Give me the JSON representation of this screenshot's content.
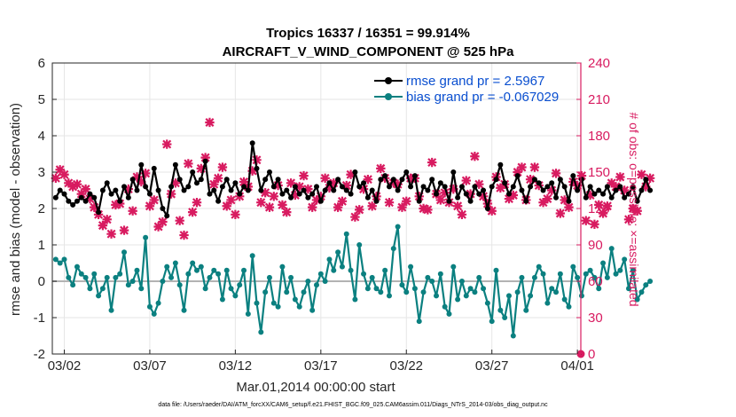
{
  "chart_data": {
    "type": "line",
    "title_line1": "Tropics 16337 / 16351 = 99.914%",
    "title_line2": "AIRCRAFT_V_WIND_COMPONENT @ 525 hPa",
    "ylabel_left": "rmse and bias (model - observation)",
    "ylabel_right": "# of obs: o=possible; ×=assimilated",
    "xlabel": "Mar.01,2014 00:00:00 start",
    "footer": "data file: /Users/raeder/DAI/ATM_forcXX/CAM6_setup/f.e21.FHIST_BGC.f09_025.CAM6assim.011/Diags_NTrS_2014-03/obs_diag_output.nc",
    "ylim_left": [
      -2,
      6
    ],
    "yticks_left": [
      "-2",
      "-1",
      "0",
      "1",
      "2",
      "3",
      "4",
      "5",
      "6"
    ],
    "ylim_right": [
      0,
      240
    ],
    "yticks_right": [
      "0",
      "30",
      "60",
      "90",
      "120",
      "150",
      "180",
      "210",
      "240"
    ],
    "xlim_days": [
      0.3,
      31.2
    ],
    "xticks": [
      {
        "day": 1,
        "label": "03/02"
      },
      {
        "day": 6,
        "label": "03/07"
      },
      {
        "day": 11,
        "label": "03/12"
      },
      {
        "day": 16,
        "label": "03/17"
      },
      {
        "day": 21,
        "label": "03/22"
      },
      {
        "day": 26,
        "label": "03/27"
      },
      {
        "day": 31,
        "label": "04/01"
      }
    ],
    "x_start_day": 0.5,
    "x_step_day": 0.25,
    "series": [
      {
        "name": "rmse grand pr = 2.5967",
        "color": "#000000",
        "values": [
          2.3,
          2.5,
          2.4,
          2.2,
          2.1,
          2.2,
          2.3,
          2.2,
          2.4,
          2.3,
          1.9,
          2.5,
          2.7,
          2.4,
          2.5,
          2.2,
          2.6,
          2.3,
          2.8,
          2.5,
          3.2,
          2.6,
          2.4,
          3.1,
          2.5,
          2.0,
          1.8,
          2.6,
          3.2,
          2.8,
          2.5,
          2.6,
          3.0,
          2.7,
          2.8,
          3.3,
          2.4,
          2.5,
          2.2,
          2.6,
          2.8,
          2.5,
          2.7,
          2.4,
          2.6,
          2.5,
          3.8,
          3.1,
          2.5,
          2.8,
          3.0,
          2.6,
          2.8,
          2.4,
          2.5,
          2.3,
          2.6,
          2.4,
          2.5,
          2.3,
          2.4,
          2.6,
          2.2,
          2.5,
          2.7,
          2.5,
          2.8,
          2.6,
          2.5,
          2.4,
          3.0,
          2.6,
          2.7,
          2.3,
          2.5,
          2.2,
          2.8,
          2.9,
          2.6,
          2.8,
          2.5,
          2.8,
          3.0,
          2.6,
          2.9,
          2.2,
          2.6,
          2.5,
          2.8,
          2.4,
          2.7,
          2.6,
          2.2,
          3.0,
          2.3,
          2.6,
          2.4,
          2.2,
          2.6,
          2.4,
          2.5,
          2.0,
          2.6,
          2.8,
          3.2,
          2.7,
          2.4,
          2.6,
          2.9,
          2.5,
          2.2,
          2.6,
          2.8,
          2.7,
          2.5,
          2.6,
          2.7,
          2.3,
          2.8,
          2.6,
          2.2,
          2.9,
          2.5,
          2.8,
          2.3,
          2.6,
          2.4,
          2.5,
          2.4,
          2.6,
          2.3,
          2.5,
          2.6,
          2.3,
          2.4,
          2.6,
          2.2,
          2.5,
          2.8,
          2.5
        ],
        "marker": "circle"
      },
      {
        "name": "bias grand pr = -0.067029",
        "color": "#0b8080",
        "values": [
          0.6,
          0.5,
          0.6,
          0.1,
          -0.1,
          0.4,
          0.2,
          0.1,
          -0.2,
          0.2,
          -0.4,
          -0.2,
          0.1,
          -0.8,
          0.1,
          0.2,
          0.8,
          -0.1,
          0.0,
          0.3,
          -0.2,
          1.2,
          -0.7,
          -0.9,
          -0.6,
          0.0,
          0.4,
          0.1,
          0.5,
          -0.1,
          -0.8,
          0.2,
          0.5,
          0.3,
          0.4,
          -0.2,
          0.1,
          0.3,
          0.2,
          -0.5,
          0.3,
          -0.2,
          -0.4,
          -0.1,
          0.3,
          -0.9,
          0.7,
          -0.6,
          -1.4,
          -0.3,
          0.1,
          -0.6,
          -0.7,
          0.4,
          -0.3,
          0.1,
          -0.5,
          -0.7,
          -0.3,
          0.0,
          -0.8,
          -0.1,
          0.2,
          0.0,
          0.6,
          0.3,
          0.8,
          0.4,
          1.3,
          0.3,
          -0.5,
          1.0,
          0.2,
          -0.2,
          0.1,
          -0.2,
          -0.3,
          0.3,
          -0.4,
          0.9,
          1.5,
          -0.1,
          -0.3,
          0.4,
          -0.2,
          -1.1,
          -0.3,
          0.1,
          0.0,
          -0.4,
          0.2,
          -0.7,
          -0.9,
          0.4,
          -0.5,
          0.0,
          -0.4,
          -0.2,
          -0.3,
          0.1,
          -0.2,
          -0.6,
          -1.1,
          0.3,
          -0.8,
          -1.0,
          -0.4,
          -1.5,
          -0.3,
          0.1,
          -0.8,
          -0.4,
          0.1,
          0.4,
          0.2,
          -0.6,
          -0.2,
          -0.3,
          0.2,
          -0.5,
          -0.7,
          0.4,
          0.1,
          -0.4,
          0.2,
          0.3,
          0.1,
          -0.2,
          0.5,
          0.1,
          0.9,
          0.2,
          0.3,
          0.6,
          -0.2,
          0.3,
          -0.5,
          -0.3,
          -0.1,
          0.0
        ],
        "marker": "circle"
      },
      {
        "name": "# of obs assimilated",
        "color": "#d81b60",
        "axis": "right",
        "values": [
          145,
          152,
          148,
          141,
          138,
          140,
          132,
          136,
          128,
          121,
          115,
          106,
          111,
          99,
          123,
          124,
          102,
          136,
          118,
          146,
          142,
          149,
          122,
          127,
          105,
          109,
          173,
          132,
          141,
          110,
          98,
          157,
          117,
          125,
          153,
          162,
          191,
          140,
          145,
          154,
          122,
          127,
          115,
          130,
          142,
          138,
          151,
          160,
          125,
          133,
          121,
          130,
          139,
          123,
          117,
          141,
          131,
          138,
          147,
          136,
          121,
          127,
          130,
          145,
          137,
          141,
          121,
          126,
          139,
          148,
          113,
          119,
          136,
          144,
          122,
          130,
          153,
          145,
          125,
          141,
          140,
          121,
          126,
          145,
          145,
          130,
          120,
          119,
          158,
          132,
          127,
          133,
          125,
          136,
          122,
          115,
          143,
          132,
          163,
          140,
          130,
          124,
          118,
          146,
          137,
          140,
          128,
          131,
          150,
          154,
          127,
          144,
          154,
          139,
          125,
          128,
          135,
          149,
          116,
          127,
          121,
          142,
          139,
          147,
          110,
          131,
          107,
          123,
          116,
          122,
          141,
          138,
          146,
          135,
          111,
          120,
          118,
          148,
          138,
          145
        ]
      }
    ]
  },
  "legend": {
    "rmse": "rmse grand pr = 2.5967",
    "bias": "bias grand pr = -0.067029"
  }
}
